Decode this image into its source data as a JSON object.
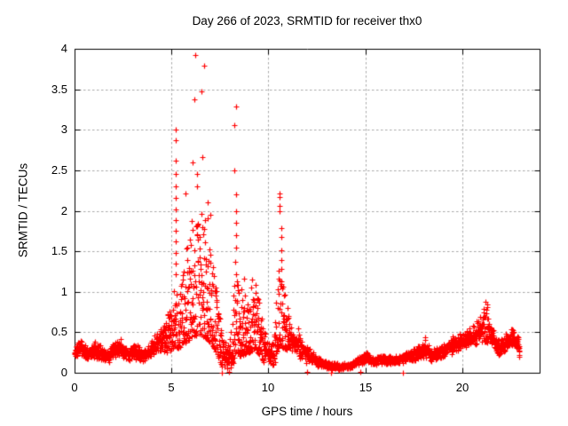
{
  "chart_data": {
    "type": "scatter",
    "title": "Day 266 of 2023, SRMTID for receiver thx0",
    "xlabel": "GPS time / hours",
    "ylabel": "SRMTID / TECUs",
    "xlim": [
      0,
      24
    ],
    "ylim": [
      0,
      4
    ],
    "grid": true,
    "xticks": [
      [
        0,
        "0"
      ],
      [
        5,
        "5"
      ],
      [
        10,
        "10"
      ],
      [
        15,
        "15"
      ],
      [
        20,
        "20"
      ]
    ],
    "yticks": [
      [
        0,
        "0"
      ],
      [
        0.5,
        "0.5"
      ],
      [
        1,
        "1"
      ],
      [
        1.5,
        "1.5"
      ],
      [
        2,
        "2"
      ],
      [
        2.5,
        "2.5"
      ],
      [
        3,
        "3"
      ],
      [
        3.5,
        "3.5"
      ],
      [
        4,
        "4"
      ]
    ],
    "colors": {
      "marker": "#ff0000",
      "grid": "#a9a9a9",
      "axis": "#000000",
      "background": "#ffffff",
      "text": "#000000"
    },
    "marker": {
      "glyph": "plus",
      "size": 7,
      "stroke": 1.2
    },
    "sampling": {
      "start": 0.0,
      "end": 22.97,
      "step": 0.00833,
      "seed": 987654321,
      "wide_band_bias": 1.8,
      "wide_band_threshold": 0.45
    },
    "envelope": [
      [
        0.0,
        0.14,
        0.34
      ],
      [
        0.35,
        0.2,
        0.45
      ],
      [
        0.7,
        0.13,
        0.3
      ],
      [
        1.0,
        0.18,
        0.4
      ],
      [
        1.35,
        0.15,
        0.34
      ],
      [
        1.65,
        0.11,
        0.28
      ],
      [
        2.0,
        0.16,
        0.36
      ],
      [
        2.35,
        0.2,
        0.44
      ],
      [
        2.7,
        0.14,
        0.31
      ],
      [
        3.1,
        0.17,
        0.38
      ],
      [
        3.5,
        0.12,
        0.3
      ],
      [
        3.85,
        0.15,
        0.36
      ],
      [
        4.15,
        0.2,
        0.5
      ],
      [
        4.5,
        0.22,
        0.6
      ],
      [
        4.8,
        0.25,
        0.72
      ],
      [
        5.05,
        0.3,
        0.95
      ],
      [
        5.2,
        0.32,
        1.15
      ],
      [
        5.4,
        0.3,
        1.0
      ],
      [
        5.6,
        0.35,
        1.3
      ],
      [
        5.8,
        0.38,
        1.6
      ],
      [
        6.0,
        0.42,
        1.9
      ],
      [
        6.2,
        0.45,
        2.1
      ],
      [
        6.4,
        0.48,
        1.85
      ],
      [
        6.6,
        0.45,
        2.0
      ],
      [
        6.8,
        0.42,
        1.9
      ],
      [
        7.0,
        0.38,
        1.65
      ],
      [
        7.2,
        0.3,
        1.25
      ],
      [
        7.45,
        0.18,
        0.8
      ],
      [
        7.65,
        0.06,
        0.5
      ],
      [
        7.9,
        0.02,
        0.35
      ],
      [
        8.1,
        0.08,
        0.6
      ],
      [
        8.3,
        0.15,
        1.4
      ],
      [
        8.5,
        0.2,
        1.05
      ],
      [
        8.75,
        0.22,
        1.2
      ],
      [
        9.0,
        0.25,
        1.15
      ],
      [
        9.3,
        0.3,
        1.25
      ],
      [
        9.55,
        0.2,
        0.9
      ],
      [
        9.8,
        0.12,
        0.55
      ],
      [
        10.05,
        0.06,
        0.4
      ],
      [
        10.3,
        0.1,
        0.6
      ],
      [
        10.5,
        0.3,
        1.3
      ],
      [
        10.7,
        0.32,
        1.2
      ],
      [
        10.95,
        0.28,
        0.9
      ],
      [
        11.15,
        0.25,
        0.62
      ],
      [
        11.35,
        0.2,
        0.55
      ],
      [
        11.55,
        0.15,
        0.5
      ],
      [
        11.8,
        0.12,
        0.4
      ],
      [
        12.1,
        0.1,
        0.32
      ],
      [
        12.5,
        0.07,
        0.22
      ],
      [
        12.9,
        0.05,
        0.16
      ],
      [
        13.3,
        0.03,
        0.13
      ],
      [
        13.8,
        0.02,
        0.12
      ],
      [
        14.2,
        0.04,
        0.14
      ],
      [
        14.7,
        0.09,
        0.22
      ],
      [
        15.1,
        0.11,
        0.26
      ],
      [
        15.5,
        0.07,
        0.19
      ],
      [
        15.9,
        0.11,
        0.25
      ],
      [
        16.3,
        0.09,
        0.21
      ],
      [
        16.7,
        0.09,
        0.22
      ],
      [
        17.1,
        0.13,
        0.28
      ],
      [
        17.5,
        0.14,
        0.31
      ],
      [
        17.85,
        0.16,
        0.35
      ],
      [
        18.1,
        0.17,
        0.4
      ],
      [
        18.4,
        0.13,
        0.31
      ],
      [
        18.75,
        0.16,
        0.35
      ],
      [
        19.1,
        0.18,
        0.38
      ],
      [
        19.4,
        0.22,
        0.45
      ],
      [
        19.75,
        0.25,
        0.49
      ],
      [
        20.05,
        0.28,
        0.54
      ],
      [
        20.35,
        0.29,
        0.58
      ],
      [
        20.65,
        0.3,
        0.63
      ],
      [
        20.9,
        0.34,
        0.72
      ],
      [
        21.1,
        0.36,
        0.8
      ],
      [
        21.25,
        0.38,
        0.88
      ],
      [
        21.45,
        0.3,
        0.62
      ],
      [
        21.7,
        0.25,
        0.52
      ],
      [
        21.95,
        0.17,
        0.42
      ],
      [
        22.15,
        0.22,
        0.48
      ],
      [
        22.4,
        0.28,
        0.55
      ],
      [
        22.65,
        0.3,
        0.57
      ],
      [
        22.85,
        0.22,
        0.5
      ],
      [
        22.97,
        0.08,
        0.4
      ]
    ],
    "spike_columns": [
      {
        "x": 5.22,
        "values": [
          1.22,
          1.35,
          1.48,
          1.62,
          1.75,
          1.88,
          2.02,
          2.16,
          2.3,
          2.46,
          2.62,
          2.87,
          3.0
        ]
      },
      {
        "x": 5.72,
        "values": [
          2.21
        ]
      },
      {
        "x": 6.09,
        "values": [
          2.6
        ]
      },
      {
        "x": 6.18,
        "values": [
          3.38
        ]
      },
      {
        "x": 6.23,
        "values": [
          3.92
        ]
      },
      {
        "x": 6.32,
        "values": [
          2.3,
          2.45
        ]
      },
      {
        "x": 6.55,
        "values": [
          3.47
        ]
      },
      {
        "x": 6.6,
        "values": [
          2.66
        ]
      },
      {
        "x": 6.69,
        "values": [
          3.79
        ]
      },
      {
        "x": 6.87,
        "values": [
          1.91,
          2.1
        ]
      },
      {
        "x": 7.02,
        "values": [
          1.95
        ]
      },
      {
        "x": 7.62,
        "values": [
          0.0
        ]
      },
      {
        "x": 7.95,
        "values": [
          0.01
        ]
      },
      {
        "x": 8.25,
        "values": [
          3.06,
          2.5
        ]
      },
      {
        "x": 8.34,
        "values": [
          3.29,
          2.2,
          2.0,
          1.85,
          1.7,
          1.55
        ]
      },
      {
        "x": 10.6,
        "values": [
          2.21,
          2.17,
          2.06,
          1.99
        ]
      },
      {
        "x": 10.66,
        "values": [
          1.79,
          1.68,
          1.51,
          1.39,
          1.28
        ]
      },
      {
        "x": 11.55,
        "values": [
          0.55
        ]
      },
      {
        "x": 12.02,
        "values": [
          0.01
        ]
      },
      {
        "x": 13.25,
        "values": [
          0.0
        ]
      },
      {
        "x": 14.75,
        "values": [
          0.01
        ]
      },
      {
        "x": 16.95,
        "values": [
          0.0
        ]
      },
      {
        "x": 18.1,
        "values": [
          0.44,
          0.41
        ]
      },
      {
        "x": 21.22,
        "values": [
          0.88
        ]
      },
      {
        "x": 21.28,
        "values": [
          0.84
        ]
      }
    ]
  }
}
